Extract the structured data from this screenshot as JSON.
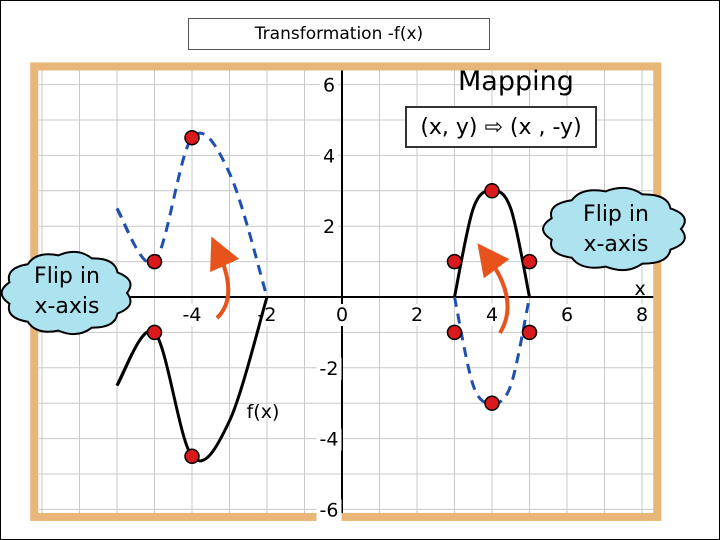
{
  "title": "Transformation -f(x)",
  "mapping": {
    "title": "Mapping",
    "rule": "(x, y) ⇨ (x , -y)"
  },
  "callouts": [
    {
      "text_line1": "Flip in",
      "text_line2": "x-axis"
    },
    {
      "text_line1": "Flip in",
      "text_line2": "x-axis"
    }
  ],
  "colors": {
    "original": "#000000",
    "reflected": "#1f4fb0",
    "points": "#d9191c",
    "arrows": "#e8531c",
    "grid": "#c8c8c8",
    "frame": "#e8b678",
    "callout_fill": "#ade2ef"
  },
  "chart_data": {
    "type": "line",
    "xlim": [
      -8.1,
      8.3
    ],
    "ylim": [
      -6.1,
      6.4
    ],
    "grid": true,
    "x_ticks": [
      {
        "value": -4,
        "label": "-4"
      },
      {
        "value": -2,
        "label": "-2"
      },
      {
        "value": 0,
        "label": "0"
      },
      {
        "value": 2,
        "label": "2"
      },
      {
        "value": 4,
        "label": "4"
      },
      {
        "value": 6,
        "label": "6"
      },
      {
        "value": 8,
        "label": "8"
      }
    ],
    "y_ticks": [
      {
        "value": 6,
        "label": "6"
      },
      {
        "value": 4,
        "label": "4"
      },
      {
        "value": 2,
        "label": "2"
      },
      {
        "value": -2,
        "label": "-2"
      },
      {
        "value": -4,
        "label": "-4"
      },
      {
        "value": -6,
        "label": "-6"
      }
    ],
    "xlabel": "x",
    "function_label": "f(x)",
    "series": [
      {
        "name": "f(x)",
        "style": "solid",
        "x": [
          -6.0,
          -5.0,
          -4.0,
          -3.0,
          -2.0
        ],
        "y": [
          -2.5,
          -1.0,
          -4.5,
          -3.5,
          0.0
        ]
      },
      {
        "style": "dashed",
        "x": [
          -6.0,
          -5.0,
          -4.0,
          -3.0,
          -2.0
        ],
        "y": [
          2.5,
          1.0,
          4.5,
          3.5,
          0.0
        ]
      },
      {
        "style": "solid",
        "x": [
          3.0,
          3.5,
          4.0,
          4.5,
          5.0
        ],
        "y": [
          0.0,
          2.5,
          3.0,
          2.5,
          0.0
        ]
      },
      {
        "style": "dashed",
        "x": [
          3.0,
          3.5,
          4.0,
          4.5,
          5.0
        ],
        "y": [
          0.0,
          -2.5,
          -3.0,
          -2.5,
          0.0
        ]
      }
    ],
    "points": [
      {
        "x": -5,
        "y": 1
      },
      {
        "x": -5,
        "y": -1
      },
      {
        "x": -4,
        "y": 4.5
      },
      {
        "x": -4,
        "y": -4.5
      },
      {
        "x": 3,
        "y": 1
      },
      {
        "x": 3,
        "y": -1
      },
      {
        "x": 4,
        "y": 3
      },
      {
        "x": 4,
        "y": -3
      },
      {
        "x": 5,
        "y": 1
      },
      {
        "x": 5,
        "y": -1
      }
    ]
  }
}
